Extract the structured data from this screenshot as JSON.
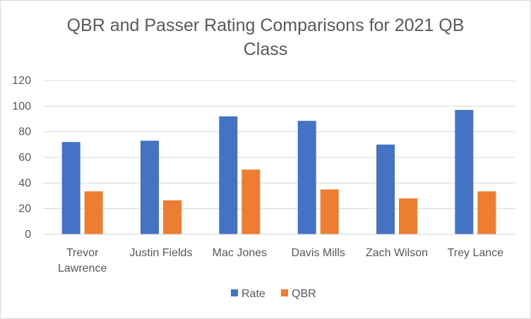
{
  "chart_data": {
    "type": "bar",
    "title": "QBR and Passer Rating Comparisons for 2021 QB Class",
    "categories": [
      "Trevor Lawrence",
      "Justin Fields",
      "Mac Jones",
      "Davis Mills",
      "Zach Wilson",
      "Trey Lance"
    ],
    "series": [
      {
        "name": "Rate",
        "color": "#4472c4",
        "values": [
          72,
          73,
          92,
          88.5,
          70,
          97
        ]
      },
      {
        "name": "QBR",
        "color": "#ed7d31",
        "values": [
          33.5,
          26.5,
          50.5,
          35,
          28,
          33.5
        ]
      }
    ],
    "xlabel": "",
    "ylabel": "",
    "ylim": [
      0,
      120
    ],
    "yticks": [
      0,
      20,
      40,
      60,
      80,
      100,
      120
    ],
    "grid": true,
    "legend": "bottom"
  }
}
